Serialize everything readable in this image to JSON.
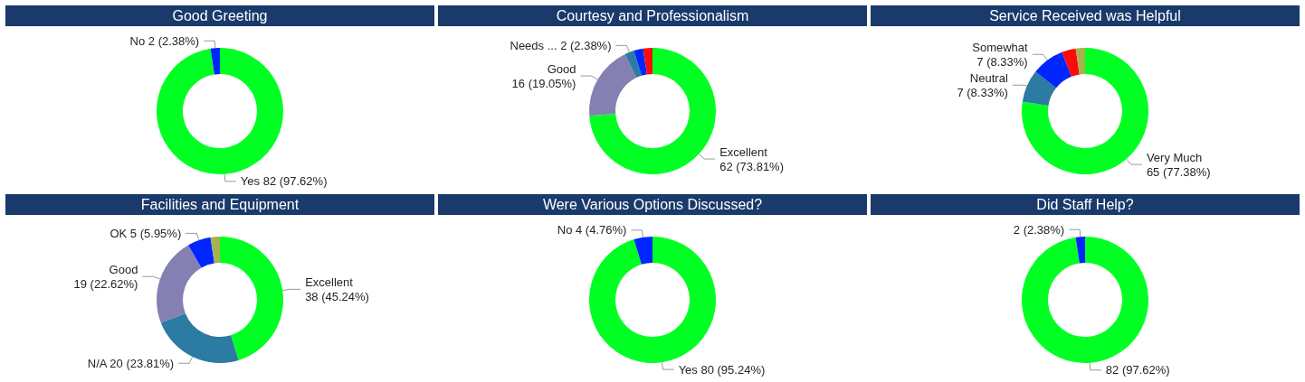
{
  "chart_data": [
    {
      "type": "donut",
      "title": "Good Greeting",
      "categories": [
        "Yes",
        "No"
      ],
      "values": [
        82,
        2
      ],
      "colors": [
        "#00ff22",
        "#0026ff"
      ],
      "value_labels": [
        "82 (97.62%)",
        "2 (2.38%)"
      ]
    },
    {
      "type": "donut",
      "title": "Courtesy and Professionalism",
      "categories": [
        "Excellent",
        "Good",
        "Needs ...",
        null,
        null
      ],
      "values": [
        62,
        16,
        2,
        2,
        2
      ],
      "colors": [
        "#00ff22",
        "#8480b2",
        "#2b7ba2",
        "#0026ff",
        "#ff0a0a"
      ],
      "value_labels": [
        "62 (73.81%)",
        "16 (19.05%)",
        "2 (2.38%)",
        null,
        null
      ]
    },
    {
      "type": "donut",
      "title": "Service Received was Helpful",
      "categories": [
        "Very Much",
        "Neutral",
        "Somewhat",
        null,
        null
      ],
      "values": [
        65,
        7,
        7,
        3,
        2
      ],
      "colors": [
        "#00ff22",
        "#2b7ba2",
        "#0026ff",
        "#ff0a0a",
        "#a6b24d"
      ],
      "value_labels": [
        "65 (77.38%)",
        "7 (8.33%)",
        "7 (8.33%)",
        null,
        null
      ]
    },
    {
      "type": "donut",
      "title": "Facilities and Equipment",
      "categories": [
        "Excellent",
        "N/A",
        "Good",
        "OK",
        null
      ],
      "values": [
        38,
        20,
        19,
        5,
        2
      ],
      "colors": [
        "#00ff22",
        "#2b7ba2",
        "#8480b2",
        "#0026ff",
        "#a6b24d"
      ],
      "value_labels": [
        "38 (45.24%)",
        "20 (23.81%)",
        "19 (22.62%)",
        "5 (5.95%)",
        null
      ]
    },
    {
      "type": "donut",
      "title": "Were Various Options Discussed?",
      "categories": [
        "Yes",
        "No"
      ],
      "values": [
        80,
        4
      ],
      "colors": [
        "#00ff22",
        "#0026ff"
      ],
      "value_labels": [
        "80 (95.24%)",
        "4 (4.76%)"
      ]
    },
    {
      "type": "donut",
      "title": "Did Staff Help?",
      "categories": [
        null,
        null
      ],
      "values": [
        82,
        2
      ],
      "colors": [
        "#00ff22",
        "#0026ff"
      ],
      "value_labels": [
        "82 (97.62%)",
        "2 (2.38%)"
      ]
    }
  ]
}
